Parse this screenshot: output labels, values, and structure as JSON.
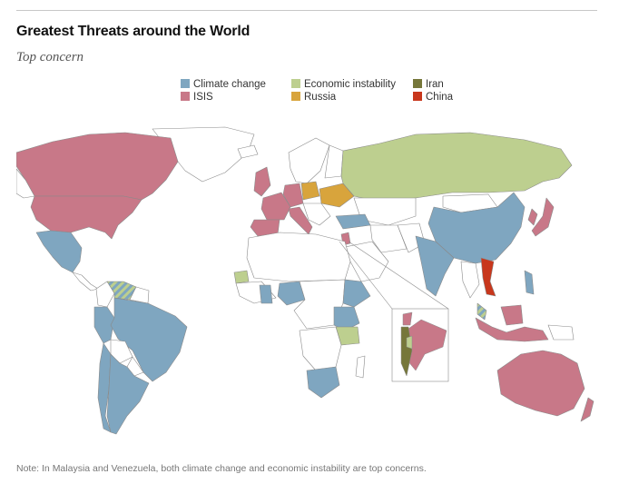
{
  "title": "Greatest Threats around the World",
  "subtitle": "Top concern",
  "legend": [
    {
      "label": "Climate change",
      "color": "#7fa6c0"
    },
    {
      "label": "ISIS",
      "color": "#c87888"
    },
    {
      "label": "Economic instability",
      "color": "#bdcf8f"
    },
    {
      "label": "Russia",
      "color": "#d8a43c"
    },
    {
      "label": "Iran",
      "color": "#76773a"
    },
    {
      "label": "China",
      "color": "#c8371c"
    }
  ],
  "colors": {
    "no_data": "#ffffff",
    "border": "#8a8a8a",
    "climate": "#7fa6c0",
    "isis": "#c87888",
    "economic": "#bdcf8f",
    "russia": "#d8a43c",
    "iran": "#76773a",
    "china": "#c8371c"
  },
  "regions": [
    {
      "name": "United States",
      "concern": "ISIS"
    },
    {
      "name": "Canada",
      "concern": "ISIS"
    },
    {
      "name": "Mexico",
      "concern": "Climate change"
    },
    {
      "name": "Venezuela",
      "concern": "Climate change / Economic instability"
    },
    {
      "name": "Brazil",
      "concern": "Climate change"
    },
    {
      "name": "Argentina",
      "concern": "Climate change"
    },
    {
      "name": "Chile",
      "concern": "Climate change"
    },
    {
      "name": "Peru",
      "concern": "Climate change"
    },
    {
      "name": "United Kingdom",
      "concern": "ISIS"
    },
    {
      "name": "France",
      "concern": "ISIS"
    },
    {
      "name": "Spain",
      "concern": "ISIS"
    },
    {
      "name": "Italy",
      "concern": "ISIS"
    },
    {
      "name": "Germany",
      "concern": "ISIS"
    },
    {
      "name": "Poland",
      "concern": "Russia"
    },
    {
      "name": "Ukraine",
      "concern": "Russia"
    },
    {
      "name": "Russia",
      "concern": "Economic instability"
    },
    {
      "name": "Turkey",
      "concern": "Climate change"
    },
    {
      "name": "China",
      "concern": "Climate change"
    },
    {
      "name": "India",
      "concern": "Climate change"
    },
    {
      "name": "Japan",
      "concern": "ISIS"
    },
    {
      "name": "South Korea",
      "concern": "ISIS"
    },
    {
      "name": "Vietnam",
      "concern": "China"
    },
    {
      "name": "Philippines",
      "concern": "Climate change"
    },
    {
      "name": "Malaysia",
      "concern": "Climate change / Economic instability"
    },
    {
      "name": "Indonesia",
      "concern": "ISIS"
    },
    {
      "name": "Australia",
      "concern": "ISIS"
    },
    {
      "name": "Israel",
      "concern": "Iran"
    },
    {
      "name": "Jordan",
      "concern": "ISIS"
    },
    {
      "name": "Lebanon",
      "concern": "ISIS"
    },
    {
      "name": "Palestinian territories",
      "concern": "Economic instability"
    },
    {
      "name": "Nigeria",
      "concern": "Climate change"
    },
    {
      "name": "Ghana",
      "concern": "Climate change"
    },
    {
      "name": "Senegal",
      "concern": "Economic instability"
    },
    {
      "name": "Ethiopia",
      "concern": "Climate change"
    },
    {
      "name": "Kenya",
      "concern": "Climate change"
    },
    {
      "name": "Uganda",
      "concern": "Climate change"
    },
    {
      "name": "Tanzania",
      "concern": "Climate change"
    },
    {
      "name": "South Africa",
      "concern": "Climate change"
    }
  ],
  "note": "Note: In Malaysia and Venezuela, both climate change and economic instability are top concerns."
}
